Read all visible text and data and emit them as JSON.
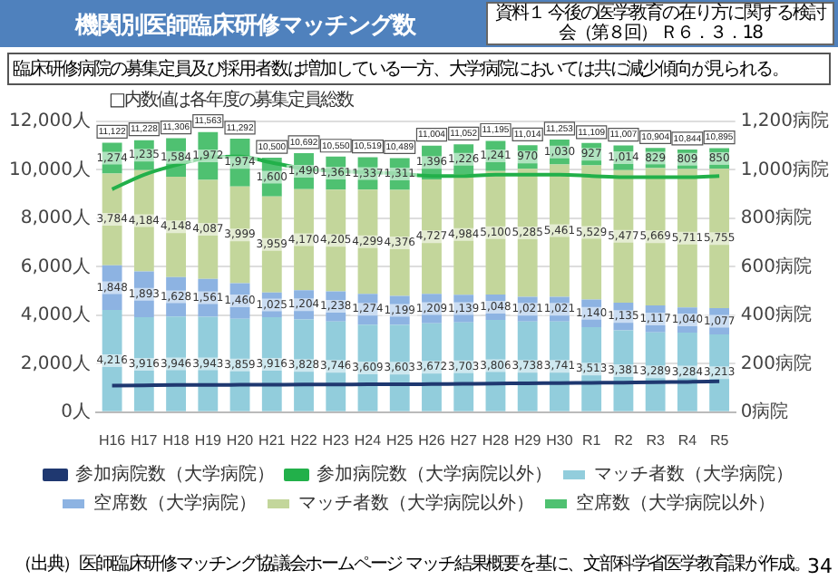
{
  "chart_data": {
    "type": "bar",
    "title": "機関別医師臨床研修マッチング数",
    "subtitle": "臨床研修病院の募集定員及び採用者数は増加している一方、大学病院においては共に減少傾向が見られる。",
    "annotations": [
      "資料１ 今後の医学教育の在り方に関する検討会（第８回） Ｒ６．３．18",
      "□内数値は各年度の募集定員総数",
      "（出典）医師臨床研修マッチング協議会ホームページ マッチ結果概要を基に、文部科学省医学教育課が作成。",
      "34"
    ],
    "categories": [
      "H16",
      "H17",
      "H18",
      "H19",
      "H20",
      "H21",
      "H22",
      "H23",
      "H24",
      "H25",
      "H26",
      "H27",
      "H28",
      "H29",
      "H30",
      "R1",
      "R2",
      "R3",
      "R4",
      "R5"
    ],
    "stacked": true,
    "grid": "y",
    "legend": "bottom",
    "marker": "none",
    "ylim": [
      0,
      12000
    ],
    "yticks": [
      {
        "value": 0,
        "label": "0人"
      },
      {
        "value": 2000,
        "label": "2,000人"
      },
      {
        "value": 4000,
        "label": "4,000人"
      },
      {
        "value": 6000,
        "label": "6,000人"
      },
      {
        "value": 8000,
        "label": "8,000人"
      },
      {
        "value": 10000,
        "label": "10,000人"
      },
      {
        "value": 12000,
        "label": "12,000人"
      }
    ],
    "y2lim": [
      0,
      1200
    ],
    "y2ticks": [
      {
        "value": 0,
        "label": "0病院"
      },
      {
        "value": 200,
        "label": "200病院"
      },
      {
        "value": 400,
        "label": "400病院"
      },
      {
        "value": 600,
        "label": "600病院"
      },
      {
        "value": 800,
        "label": "800病院"
      },
      {
        "value": 1000,
        "label": "1,000病院"
      },
      {
        "value": 1200,
        "label": "1,200病院"
      }
    ],
    "series": [
      {
        "name": "マッチ者数（大学病院）",
        "color": "#92cddc",
        "values": [
          4216,
          3916,
          3946,
          3943,
          3859,
          3916,
          3828,
          3746,
          3609,
          3603,
          3672,
          3703,
          3806,
          3738,
          3741,
          3513,
          3381,
          3289,
          3284,
          3213
        ],
        "value_labels": [
          "4,216",
          "3,916",
          "3,946",
          "3,943",
          "3,859",
          "3,916",
          "3,828",
          "3,746",
          "3,609",
          "3,603",
          "3,672",
          "3,703",
          "3,806",
          "3,738",
          "3,741",
          "3,513",
          "3,381",
          "3,289",
          "3,284",
          "3,213"
        ]
      },
      {
        "name": "空席数（大学病院）",
        "color": "#8db3e2",
        "values": [
          1848,
          1893,
          1628,
          1561,
          1460,
          1025,
          1204,
          1238,
          1274,
          1199,
          1209,
          1139,
          1048,
          1021,
          1021,
          1140,
          1135,
          1117,
          1040,
          1077
        ],
        "value_labels": [
          "1,848",
          "1,893",
          "1,628",
          "1,561",
          "1,460",
          "1,025",
          "1,204",
          "1,238",
          "1,274",
          "1,199",
          "1,209",
          "1,139",
          "1,048",
          "1,021",
          "1,021",
          "1,140",
          "1,135",
          "1,117",
          "1,040",
          "1,077"
        ]
      },
      {
        "name": "マッチ者数（大学病院以外）",
        "color": "#c3d69b",
        "values": [
          3784,
          4184,
          4148,
          4087,
          3999,
          3959,
          4170,
          4205,
          4299,
          4376,
          4727,
          4984,
          5100,
          5285,
          5461,
          5529,
          5477,
          5669,
          5711,
          5755
        ],
        "value_labels": [
          "3,784",
          "4,184",
          "4,148",
          "4,087",
          "3,999",
          "3,959",
          "4,170",
          "4,205",
          "4,299",
          "4,376",
          "4,727",
          "4,984",
          "5,100",
          "5,285",
          "5,461",
          "5,529",
          "5,477",
          "5,669",
          "5,711",
          "5,755"
        ]
      },
      {
        "name": "空席数（大学病院以外）",
        "color": "#4fc171",
        "values": [
          1274,
          1235,
          1584,
          1972,
          1974,
          1600,
          1490,
          1361,
          1337,
          1311,
          1396,
          1226,
          1241,
          970,
          1030,
          927,
          1014,
          829,
          809,
          850
        ],
        "value_labels": [
          "1,274",
          "1,235",
          "1,584",
          "1,972",
          "1,974",
          "1,600",
          "1,490",
          "1,361",
          "1,337",
          "1,311",
          "1,396",
          "1,226",
          "1,241",
          "970",
          "1,030",
          "927",
          "1,014",
          "829",
          "809",
          "850"
        ]
      },
      {
        "name": "参加病院数（大学病院）",
        "type": "line",
        "axis": "y2",
        "color": "#1f3870",
        "values": [
          110,
          111,
          112,
          112,
          113,
          113,
          114,
          114,
          115,
          115,
          116,
          117,
          118,
          119,
          120,
          121,
          122,
          124,
          125,
          127
        ]
      },
      {
        "name": "参加病院数（大学病院以外）",
        "type": "line",
        "axis": "y2",
        "color": "#22b04a",
        "values": [
          920,
          980,
          1020,
          1050,
          1055,
          1030,
          1005,
          995,
          990,
          985,
          975,
          975,
          980,
          980,
          980,
          975,
          970,
          970,
          970,
          975
        ]
      }
    ],
    "totals": [
      "11,122",
      "11,228",
      "11,306",
      "11,563",
      "11,292",
      "10,500",
      "10,692",
      "10,550",
      "10,519",
      "10,489",
      "11,004",
      "11,052",
      "11,195",
      "11,014",
      "11,253",
      "11,109",
      "11,007",
      "10,904",
      "10,844",
      "10,895"
    ]
  }
}
